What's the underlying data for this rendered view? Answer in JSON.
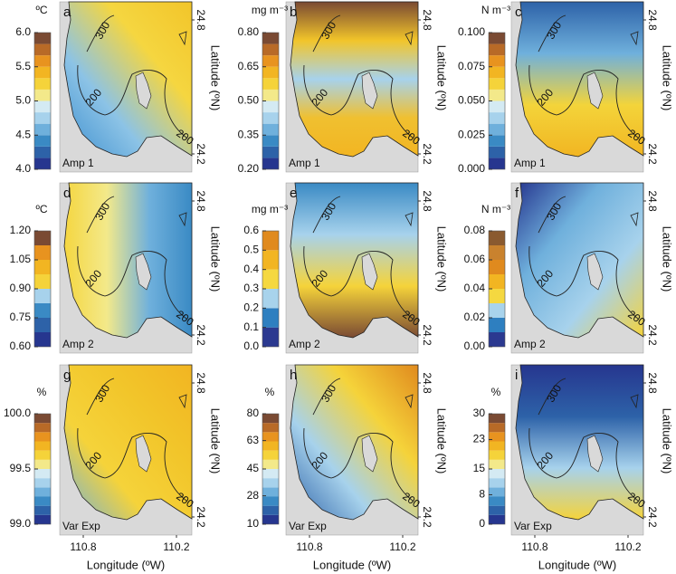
{
  "panels": [
    {
      "letter": "a",
      "unit": "ºC",
      "label": "Amp 1",
      "colors": [
        "#26368f",
        "#2d62a8",
        "#3a8ac4",
        "#6fb0dc",
        "#a7d2ec",
        "#d4eaf3",
        "#f3e98a",
        "#f5d33a",
        "#f2b522",
        "#e8931f",
        "#b86a27",
        "#7a4a33"
      ],
      "ticks": [
        {
          "value": 4.0,
          "label": "4.0"
        },
        4.5,
        {
          "value": 5.0,
          "label": "5.0"
        },
        5.5,
        {
          "value": 6.0,
          "label": "6.0"
        }
      ]
    },
    {
      "letter": "b",
      "unit": "mg m⁻³",
      "label": "Amp 1",
      "colors": [
        "#26368f",
        "#2d62a8",
        "#3a8ac4",
        "#6fb0dc",
        "#a7d2ec",
        "#d4eaf3",
        "#f3e98a",
        "#f5d33a",
        "#f2b522",
        "#e8931f",
        "#b86a27",
        "#7a4a33"
      ],
      "ticks": [
        {
          "value": 0.2,
          "label": "0.20"
        },
        0.35,
        {
          "value": 0.5,
          "label": "0.50"
        },
        0.65,
        {
          "value": 0.8,
          "label": "0.80"
        }
      ]
    },
    {
      "letter": "c",
      "unit": "N m⁻³",
      "label": "Amp 1",
      "colors": [
        "#26368f",
        "#2d62a8",
        "#3a8ac4",
        "#6fb0dc",
        "#a7d2ec",
        "#d4eaf3",
        "#f3e98a",
        "#f5d33a",
        "#f2b522",
        "#e8931f",
        "#b86a27",
        "#7a4a33"
      ],
      "ticks": [
        {
          "value": 0,
          "label": "0.000"
        },
        0.025,
        {
          "value": 0.05,
          "label": "0.050"
        },
        0.075,
        {
          "value": 0.1,
          "label": "0.100"
        }
      ]
    },
    {
      "letter": "d",
      "unit": "ºC",
      "label": "Amp 2",
      "colors": [
        "#26368f",
        "#2d62a8",
        "#3a8ac4",
        "#a7d2ec",
        "#f5d33a",
        "#f2b522",
        "#e8931f",
        "#7a4a33"
      ],
      "ticks": [
        {
          "value": 0.6,
          "label": "0.60"
        },
        0.75,
        {
          "value": 0.9,
          "label": "0.90"
        },
        1.05,
        {
          "value": 1.2,
          "label": "1.20"
        }
      ]
    },
    {
      "letter": "e",
      "unit": "mg m⁻³",
      "label": "Amp 2",
      "colors": [
        "#2b3990",
        "#2e7fc0",
        "#a8d3ec",
        "#f5d840",
        "#f2b522",
        "#e08a1e"
      ],
      "ticks": [
        {
          "value": 0,
          "label": "0.0"
        },
        0.1,
        0.2,
        0.3,
        0.4,
        0.5,
        0.6
      ]
    },
    {
      "letter": "f",
      "unit": "N m⁻³",
      "label": "Amp 2",
      "colors": [
        "#2b3990",
        "#2e7fc0",
        "#a8d3ec",
        "#f5d840",
        "#f2b522",
        "#e08a1e",
        "#c9822e",
        "#8a5a30"
      ],
      "ticks": [
        {
          "value": 0,
          "label": "0.00"
        },
        {
          "value": 0.02,
          "label": "0.02"
        },
        {
          "value": 0.04,
          "label": "0.04"
        },
        {
          "value": 0.06,
          "label": "0.06"
        },
        {
          "value": 0.08,
          "label": "0.08"
        }
      ]
    },
    {
      "letter": "g",
      "unit": "%",
      "label": "Var Exp",
      "colors": [
        "#26368f",
        "#2d62a8",
        "#3a8ac4",
        "#6fb0dc",
        "#a7d2ec",
        "#d4eaf3",
        "#f3e98a",
        "#f5d33a",
        "#f2b522",
        "#e8931f",
        "#b86a27",
        "#7a4a33"
      ],
      "ticks": [
        {
          "value": 99.0,
          "label": "99.0"
        },
        99.5,
        {
          "value": 100.0,
          "label": "100.0"
        }
      ]
    },
    {
      "letter": "h",
      "unit": "%",
      "label": "Var Exp",
      "colors": [
        "#26368f",
        "#2d62a8",
        "#3a8ac4",
        "#6fb0dc",
        "#a7d2ec",
        "#d4eaf3",
        "#f3e98a",
        "#f5d33a",
        "#f2b522",
        "#e8931f",
        "#b86a27",
        "#7a4a33"
      ],
      "ticks": [
        10,
        28,
        45,
        63,
        80
      ]
    },
    {
      "letter": "i",
      "unit": "%",
      "label": "Var Exp",
      "colors": [
        "#26368f",
        "#2d62a8",
        "#3a8ac4",
        "#6fb0dc",
        "#a7d2ec",
        "#d4eaf3",
        "#f3e98a",
        "#f5d33a",
        "#f2b522",
        "#e8931f",
        "#b86a27",
        "#7a4a33"
      ],
      "ticks": [
        0,
        8,
        15,
        23,
        30
      ]
    }
  ],
  "contour_labels": [
    300,
    200,
    200
  ],
  "latitude_ticks": [
    24.8,
    24.2
  ],
  "latitude_label": "Latitude (ºN)",
  "longitude_ticks": [
    110.8,
    110.2
  ],
  "longitude_label": "Longitude (ºW)"
}
